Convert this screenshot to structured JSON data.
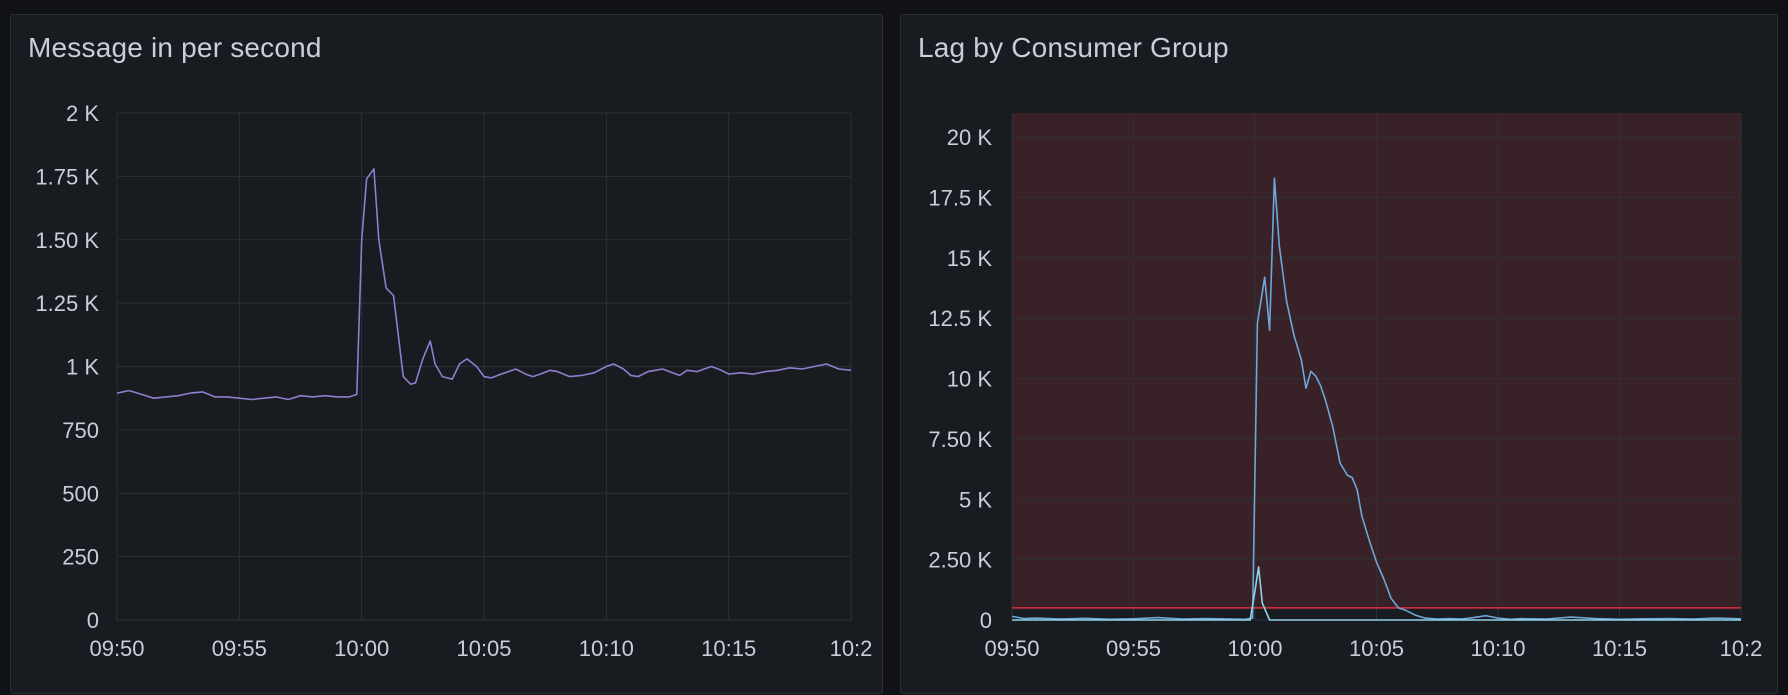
{
  "panels": [
    {
      "title": "Message in per second"
    },
    {
      "title": "Lag by Consumer Group"
    }
  ],
  "colors": {
    "background": "#111217",
    "panel": "#181b1f",
    "grid": "#2c3038",
    "text": "#ccccdc",
    "series_messages": "#8f7ecf",
    "series_lag": "#6ea6d9",
    "series_lag_secondary": "#8fd4e6",
    "threshold_region": "#382228",
    "threshold_line": "#e02f44"
  },
  "chart_data": [
    {
      "type": "line",
      "title": "Message in per second",
      "xlabel": "",
      "ylabel": "",
      "x_ticks": [
        "09:50",
        "09:55",
        "10:00",
        "10:05",
        "10:10",
        "10:15",
        "10:2"
      ],
      "y_ticks": [
        "0",
        "250",
        "500",
        "750",
        "1 K",
        "1.25 K",
        "1.50 K",
        "1.75 K",
        "2 K"
      ],
      "y_tick_values": [
        0,
        250,
        500,
        750,
        1000,
        1250,
        1500,
        1750,
        2000
      ],
      "xlim_minutes": [
        0,
        30
      ],
      "ylim": [
        0,
        2000
      ],
      "grid": true,
      "series": [
        {
          "x": [
            0,
            0.5,
            1,
            1.5,
            2,
            2.5,
            3,
            3.5,
            4,
            4.5,
            5,
            5.5,
            6,
            6.5,
            7,
            7.5,
            8,
            8.5,
            9,
            9.5,
            9.8,
            10,
            10.2,
            10.5,
            10.7,
            11,
            11.3,
            11.7,
            12,
            12.2,
            12.5,
            12.8,
            13,
            13.3,
            13.7,
            14,
            14.3,
            14.7,
            15,
            15.3,
            15.7,
            16,
            16.3,
            16.7,
            17,
            17.3,
            17.7,
            18,
            18.5,
            19,
            19.5,
            20,
            20.3,
            20.7,
            21,
            21.3,
            21.7,
            22,
            22.3,
            22.7,
            23,
            23.3,
            23.7,
            24,
            24.3,
            24.7,
            25,
            25.5,
            26,
            26.5,
            27,
            27.5,
            28,
            28.5,
            29,
            29.5,
            30
          ],
          "values": [
            895,
            905,
            890,
            875,
            880,
            885,
            895,
            900,
            880,
            880,
            875,
            870,
            875,
            880,
            870,
            885,
            880,
            885,
            880,
            880,
            890,
            1500,
            1740,
            1780,
            1500,
            1310,
            1280,
            960,
            930,
            935,
            1030,
            1100,
            1010,
            960,
            950,
            1010,
            1030,
            1000,
            960,
            955,
            970,
            980,
            990,
            970,
            960,
            970,
            985,
            980,
            960,
            965,
            975,
            1000,
            1010,
            990,
            965,
            960,
            980,
            985,
            990,
            975,
            965,
            985,
            980,
            990,
            1000,
            985,
            970,
            975,
            970,
            980,
            985,
            995,
            990,
            1000,
            1010,
            990,
            985
          ]
        }
      ]
    },
    {
      "type": "line",
      "title": "Lag by Consumer Group",
      "xlabel": "",
      "ylabel": "",
      "x_ticks": [
        "09:50",
        "09:55",
        "10:00",
        "10:05",
        "10:10",
        "10:15",
        "10:2"
      ],
      "y_ticks": [
        "0",
        "2.50 K",
        "5 K",
        "7.50 K",
        "10 K",
        "12.5 K",
        "15 K",
        "17.5 K",
        "20 K"
      ],
      "y_tick_values": [
        0,
        2500,
        5000,
        7500,
        10000,
        12500,
        15000,
        17500,
        20000
      ],
      "xlim_minutes": [
        0,
        30
      ],
      "ylim": [
        0,
        21000
      ],
      "grid": true,
      "threshold": 500,
      "series": [
        {
          "x": [
            0,
            0.5,
            1,
            2,
            3,
            4,
            5,
            6,
            7,
            8,
            9,
            9.6,
            9.9,
            10.1,
            10.4,
            10.6,
            10.8,
            11.0,
            11.3,
            11.6,
            11.9,
            12.1,
            12.3,
            12.5,
            12.7,
            12.9,
            13.2,
            13.5,
            13.8,
            14.0,
            14.2,
            14.4,
            14.7,
            15.0,
            15.3,
            15.6,
            15.9,
            16.2,
            16.6,
            17.0,
            17.5,
            18,
            18.5,
            19,
            19.5,
            20,
            20.5,
            21,
            22,
            23,
            24,
            25,
            26,
            27,
            28,
            29,
            30
          ],
          "values": [
            150,
            60,
            80,
            40,
            70,
            30,
            50,
            100,
            40,
            60,
            40,
            30,
            80,
            12300,
            14200,
            12000,
            18300,
            15500,
            13200,
            11800,
            10800,
            9600,
            10300,
            10100,
            9700,
            9100,
            8000,
            6500,
            6000,
            5900,
            5400,
            4300,
            3300,
            2400,
            1700,
            900,
            500,
            400,
            200,
            80,
            40,
            60,
            40,
            100,
            180,
            80,
            30,
            60,
            40,
            120,
            60,
            30,
            50,
            60,
            40,
            80,
            50
          ]
        },
        {
          "x": [
            0,
            9.5,
            9.8,
            10.0,
            10.15,
            10.3,
            10.6,
            11,
            12,
            14,
            16,
            18,
            20,
            22,
            24,
            26,
            28,
            30
          ],
          "values": [
            0,
            0,
            0,
            1200,
            2200,
            700,
            0,
            0,
            0,
            0,
            0,
            0,
            0,
            0,
            0,
            0,
            0,
            0
          ]
        }
      ]
    }
  ]
}
